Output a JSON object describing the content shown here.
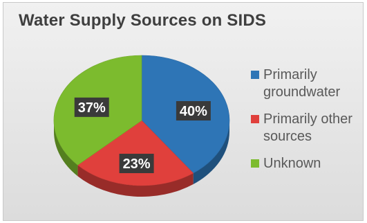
{
  "chart_data": {
    "type": "pie",
    "title": "Water Supply Sources on SIDS",
    "categories": [
      "Primarily groundwater",
      "Primarily other sources",
      "Unknown"
    ],
    "values": [
      40,
      23,
      37
    ],
    "data_labels": [
      "40%",
      "23%",
      "37%"
    ],
    "colors": [
      "#2e75b6",
      "#e0403c",
      "#7cbb2e"
    ],
    "legend_placement": "right",
    "style": "3d-pie"
  },
  "legend": [
    {
      "text": "Primarily groundwater",
      "color": "#2e75b6"
    },
    {
      "text": "Primarily other sources",
      "color": "#e0403c"
    },
    {
      "text": "Unknown",
      "color": "#7cbb2e"
    }
  ]
}
